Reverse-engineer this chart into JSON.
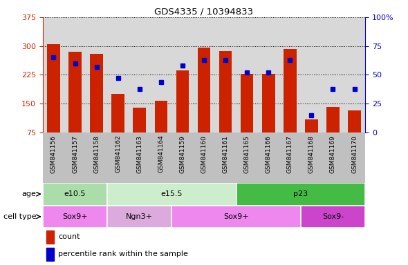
{
  "title": "GDS4335 / 10394833",
  "samples": [
    "GSM841156",
    "GSM841157",
    "GSM841158",
    "GSM841162",
    "GSM841163",
    "GSM841164",
    "GSM841159",
    "GSM841160",
    "GSM841161",
    "GSM841165",
    "GSM841166",
    "GSM841167",
    "GSM841168",
    "GSM841169",
    "GSM841170"
  ],
  "counts": [
    304,
    285,
    280,
    175,
    140,
    158,
    237,
    296,
    287,
    228,
    228,
    292,
    110,
    142,
    133
  ],
  "percentile_ranks": [
    65,
    60,
    57,
    47,
    38,
    44,
    58,
    63,
    63,
    52,
    52,
    63,
    15,
    38,
    38
  ],
  "ymin": 75,
  "ymax": 375,
  "yticks_left": [
    75,
    150,
    225,
    300,
    375
  ],
  "pct_min": 0,
  "pct_max": 100,
  "yticks_right": [
    0,
    25,
    50,
    75,
    100
  ],
  "bar_color": "#cc2200",
  "dot_color": "#0000cc",
  "plot_bg_color": "#d8d8d8",
  "xband_bg_color": "#c0c0c0",
  "age_groups": [
    {
      "label": "e10.5",
      "start": 0,
      "end": 3,
      "color": "#aaddaa"
    },
    {
      "label": "e15.5",
      "start": 3,
      "end": 9,
      "color": "#cceecc"
    },
    {
      "label": "p23",
      "start": 9,
      "end": 15,
      "color": "#44bb44"
    }
  ],
  "cell_type_groups": [
    {
      "label": "Sox9+",
      "start": 0,
      "end": 3,
      "color": "#ee88ee"
    },
    {
      "label": "Ngn3+",
      "start": 3,
      "end": 6,
      "color": "#ddaadd"
    },
    {
      "label": "Sox9+",
      "start": 6,
      "end": 12,
      "color": "#ee88ee"
    },
    {
      "label": "Sox9-",
      "start": 12,
      "end": 15,
      "color": "#cc44cc"
    }
  ],
  "age_label": "age",
  "cell_type_label": "cell type",
  "legend_count": "count",
  "legend_percentile": "percentile rank within the sample",
  "left_color": "#cc2200",
  "right_color": "#0000cc"
}
